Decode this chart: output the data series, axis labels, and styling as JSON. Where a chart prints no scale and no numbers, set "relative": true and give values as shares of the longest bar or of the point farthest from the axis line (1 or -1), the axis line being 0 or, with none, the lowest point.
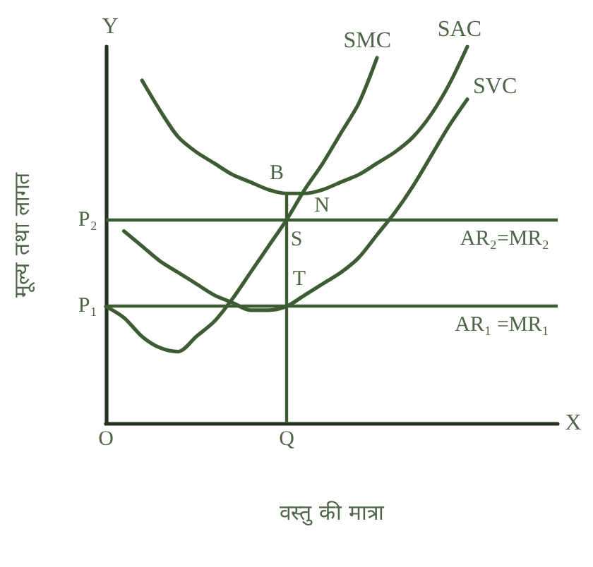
{
  "chart_data": {
    "type": "line",
    "relative": true,
    "xlabel": "वस्तु की मात्रा",
    "ylabel": "मूल्य तथा लागत",
    "categories": [
      "O",
      null,
      null,
      null,
      null,
      null,
      null,
      null,
      null,
      null,
      "Q",
      null,
      null,
      null,
      null,
      null,
      null,
      null,
      null,
      null,
      null,
      null,
      null,
      null,
      null,
      null
    ],
    "marker": "none",
    "line_style": "solid",
    "series": [
      {
        "name": "SMC",
        "color": "#3d5c33",
        "values": [
          0.31,
          0.28,
          0.23,
          0.2,
          0.19,
          0.23,
          0.27,
          0.33,
          0.4,
          0.47,
          0.54,
          0.62,
          0.69,
          0.77,
          0.85,
          0.97,
          null,
          null,
          null,
          null,
          null,
          null,
          null,
          null,
          null,
          null
        ]
      },
      {
        "name": "SAC",
        "color": "#3d5c33",
        "values": [
          null,
          null,
          0.91,
          0.83,
          0.76,
          0.72,
          0.69,
          0.66,
          0.64,
          0.62,
          0.61,
          0.61,
          0.62,
          0.64,
          0.66,
          0.69,
          0.72,
          0.76,
          0.82,
          0.9,
          1.0,
          null,
          null,
          null,
          null,
          null
        ]
      },
      {
        "name": "SVC",
        "color": "#3d5c33",
        "values": [
          null,
          0.51,
          0.47,
          0.43,
          0.4,
          0.37,
          0.34,
          0.32,
          0.3,
          0.3,
          0.31,
          0.34,
          0.37,
          0.4,
          0.44,
          0.5,
          0.56,
          0.63,
          0.71,
          0.79,
          0.86,
          null,
          null,
          null,
          null,
          null
        ]
      }
    ],
    "ref_lines": [
      {
        "axis": "y",
        "value": 0.54,
        "label": "AR₂=MR₂",
        "color": "#3d5c33"
      },
      {
        "axis": "y",
        "value": 0.31,
        "label": "AR₁ =MR₁",
        "color": "#3d5c33"
      },
      {
        "axis": "x",
        "value": "Q",
        "color": "#3d5c33"
      }
    ],
    "annotations": [
      "Y",
      "X",
      {
        "text": "P₂",
        "x": "O",
        "y": 0.54
      },
      {
        "text": "P₁",
        "x": "O",
        "y": 0.31
      },
      {
        "text": "B",
        "x": "Q",
        "y": 0.61
      },
      {
        "text": "N",
        "y": 0.61
      },
      {
        "text": "S",
        "x": "Q",
        "y": 0.54
      },
      {
        "text": "T",
        "x": "Q",
        "y": 0.31
      }
    ]
  }
}
